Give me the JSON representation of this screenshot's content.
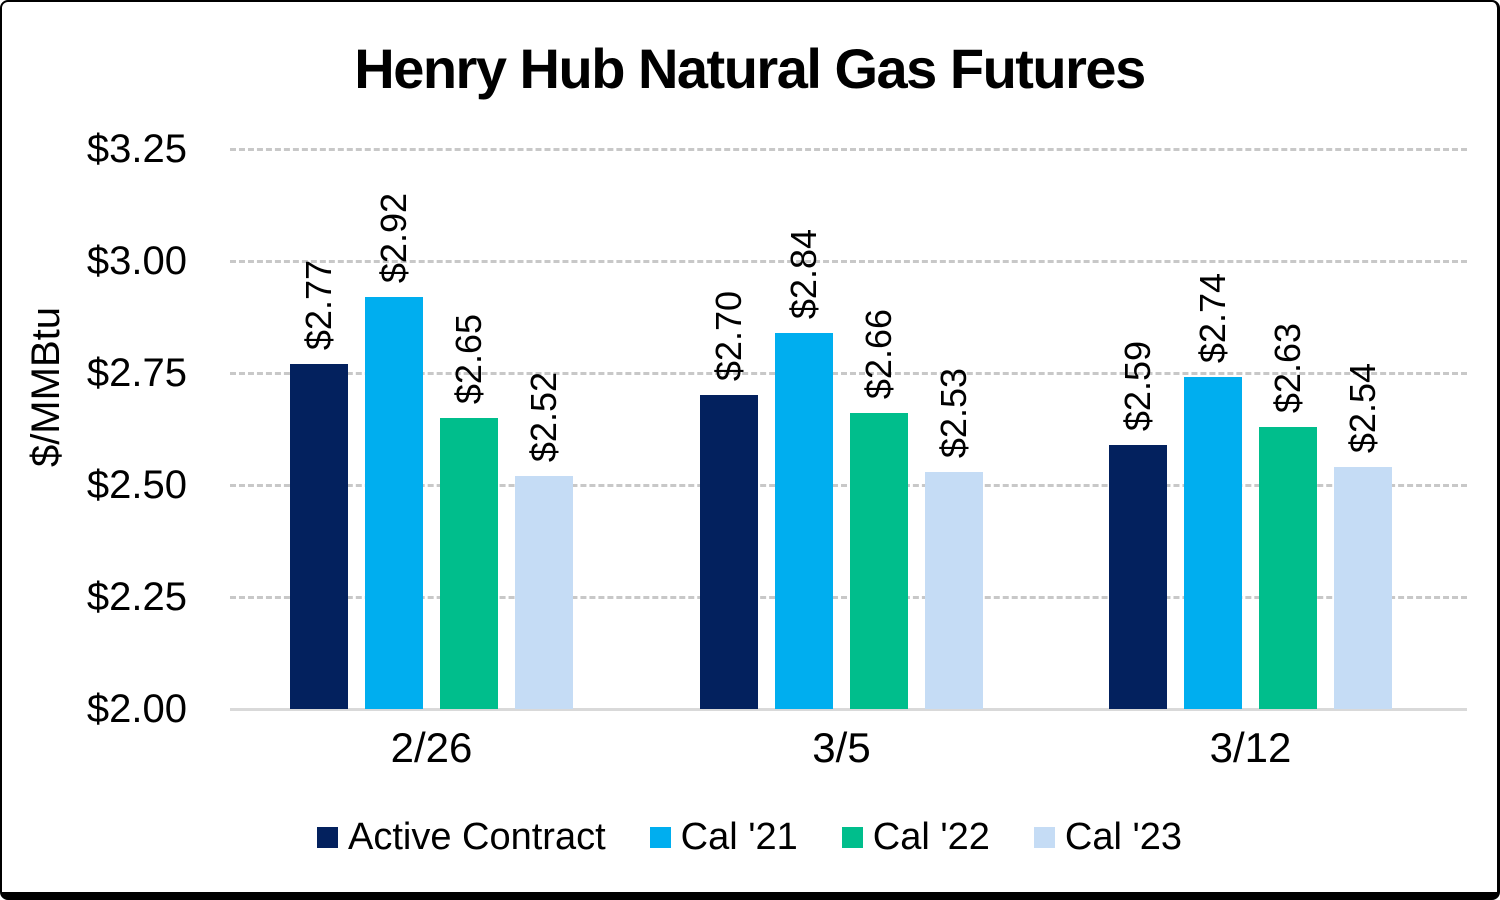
{
  "chart_data": {
    "type": "bar",
    "title": "Henry Hub Natural Gas Futures",
    "ylabel": "$/MMBtu",
    "xlabel": "",
    "categories": [
      "2/26",
      "3/5",
      "3/12"
    ],
    "series": [
      {
        "name": "Active Contract",
        "color": "#03215e",
        "values": [
          2.77,
          2.7,
          2.59
        ],
        "labels": [
          "$2.77",
          "$2.70",
          "$2.59"
        ]
      },
      {
        "name": "Cal '21",
        "color": "#00aeef",
        "values": [
          2.92,
          2.84,
          2.74
        ],
        "labels": [
          "$2.92",
          "$2.84",
          "$2.74"
        ]
      },
      {
        "name": "Cal '22",
        "color": "#00be8c",
        "values": [
          2.65,
          2.66,
          2.63
        ],
        "labels": [
          "$2.65",
          "$2.66",
          "$2.63"
        ]
      },
      {
        "name": "Cal '23",
        "color": "#c5dcf5",
        "values": [
          2.52,
          2.53,
          2.54
        ],
        "labels": [
          "$2.52",
          "$2.53",
          "$2.54"
        ]
      }
    ],
    "ylim": [
      2.0,
      3.25
    ],
    "y_tick_step": 0.25,
    "y_tick_labels": [
      "$3.25",
      "$3.00",
      "$2.75",
      "$2.50",
      "$2.25",
      "$2.00"
    ],
    "grid": "horizontal-dashed",
    "gridline_color": "#c8c8c8",
    "axis_line_color": "#d9d9d9",
    "legend_position": "bottom",
    "data_label_rotation": "vertical"
  }
}
